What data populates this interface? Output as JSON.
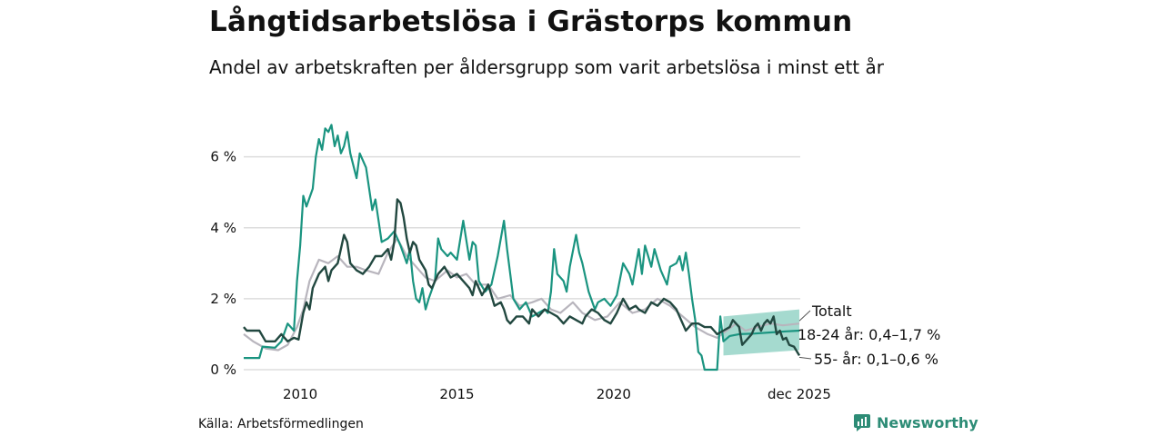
{
  "title": "Långtidsarbetslösa i Grästorps kommun",
  "subtitle": "Andel av arbetskraften per åldersgrupp som varit arbetslösa i minst ett år",
  "source": "Källa: Arbetsförmedlingen",
  "brand": "Newsworthy",
  "colors": {
    "total": "#b8b5bd",
    "youth": "#1a9480",
    "senior": "#224840",
    "band": "#8fd1c3",
    "grid": "#dddddd"
  },
  "chart_data": {
    "type": "line",
    "title": "Långtidsarbetslösa i Grästorps kommun",
    "xlim": [
      2008.2,
      2025.95
    ],
    "ylim": [
      0,
      7.4
    ],
    "y_ticks": [
      0,
      2,
      4,
      6
    ],
    "y_tick_labels": [
      "0 %",
      "2 %",
      "4 %",
      "6 %"
    ],
    "x_ticks": [
      2010,
      2015,
      2020,
      2025.92
    ],
    "x_tick_labels": [
      "2010",
      "2015",
      "2020",
      "dec 2025"
    ],
    "series": [
      {
        "name": "Totalt",
        "label": "Totalt",
        "key": "total",
        "points": [
          [
            2008.2,
            1.0
          ],
          [
            2008.5,
            0.8
          ],
          [
            2008.9,
            0.6
          ],
          [
            2009.3,
            0.55
          ],
          [
            2009.6,
            0.7
          ],
          [
            2009.9,
            1.2
          ],
          [
            2010.1,
            1.7
          ],
          [
            2010.3,
            2.5
          ],
          [
            2010.6,
            3.1
          ],
          [
            2010.9,
            3.0
          ],
          [
            2011.2,
            3.2
          ],
          [
            2011.5,
            2.9
          ],
          [
            2011.8,
            2.9
          ],
          [
            2012.1,
            2.8
          ],
          [
            2012.5,
            2.7
          ],
          [
            2012.8,
            3.3
          ],
          [
            2013.1,
            3.7
          ],
          [
            2013.4,
            3.2
          ],
          [
            2013.7,
            2.9
          ],
          [
            2014.0,
            2.6
          ],
          [
            2014.3,
            2.5
          ],
          [
            2014.7,
            2.8
          ],
          [
            2015.0,
            2.6
          ],
          [
            2015.3,
            2.7
          ],
          [
            2015.6,
            2.4
          ],
          [
            2016.0,
            2.4
          ],
          [
            2016.3,
            2.0
          ],
          [
            2016.7,
            2.1
          ],
          [
            2017.0,
            1.8
          ],
          [
            2017.4,
            1.9
          ],
          [
            2017.7,
            2.0
          ],
          [
            2018.0,
            1.7
          ],
          [
            2018.3,
            1.6
          ],
          [
            2018.7,
            1.9
          ],
          [
            2019.0,
            1.6
          ],
          [
            2019.4,
            1.4
          ],
          [
            2019.8,
            1.5
          ],
          [
            2020.2,
            1.9
          ],
          [
            2020.6,
            1.6
          ],
          [
            2021.0,
            1.7
          ],
          [
            2021.4,
            2.0
          ],
          [
            2021.8,
            1.8
          ],
          [
            2022.2,
            1.5
          ],
          [
            2022.6,
            1.2
          ],
          [
            2023.0,
            1.0
          ],
          [
            2023.3,
            0.9
          ],
          [
            2023.6,
            1.1
          ],
          [
            2023.9,
            1.3
          ],
          [
            2024.2,
            1.1
          ],
          [
            2024.6,
            1.2
          ],
          [
            2025.0,
            1.3
          ],
          [
            2025.4,
            1.25
          ],
          [
            2025.92,
            1.3
          ]
        ]
      },
      {
        "name": "18-24 år",
        "label": "18-24 år: 0,4–1,7 %",
        "key": "youth",
        "points": [
          [
            2008.2,
            0.33
          ],
          [
            2008.7,
            0.33
          ],
          [
            2008.8,
            0.65
          ],
          [
            2009.2,
            0.62
          ],
          [
            2009.4,
            0.8
          ],
          [
            2009.6,
            1.3
          ],
          [
            2009.8,
            1.1
          ],
          [
            2009.9,
            2.5
          ],
          [
            2010.0,
            3.5
          ],
          [
            2010.1,
            4.9
          ],
          [
            2010.2,
            4.6
          ],
          [
            2010.4,
            5.1
          ],
          [
            2010.5,
            6.0
          ],
          [
            2010.6,
            6.5
          ],
          [
            2010.7,
            6.2
          ],
          [
            2010.8,
            6.8
          ],
          [
            2010.9,
            6.7
          ],
          [
            2011.0,
            6.9
          ],
          [
            2011.1,
            6.3
          ],
          [
            2011.2,
            6.6
          ],
          [
            2011.3,
            6.1
          ],
          [
            2011.4,
            6.3
          ],
          [
            2011.5,
            6.7
          ],
          [
            2011.6,
            6.1
          ],
          [
            2011.8,
            5.4
          ],
          [
            2011.9,
            6.1
          ],
          [
            2012.1,
            5.7
          ],
          [
            2012.3,
            4.5
          ],
          [
            2012.4,
            4.8
          ],
          [
            2012.5,
            4.2
          ],
          [
            2012.6,
            3.6
          ],
          [
            2012.8,
            3.7
          ],
          [
            2013.0,
            3.9
          ],
          [
            2013.2,
            3.5
          ],
          [
            2013.4,
            3.0
          ],
          [
            2013.5,
            3.4
          ],
          [
            2013.6,
            2.5
          ],
          [
            2013.7,
            2.0
          ],
          [
            2013.8,
            1.9
          ],
          [
            2013.9,
            2.3
          ],
          [
            2014.0,
            1.7
          ],
          [
            2014.1,
            2.0
          ],
          [
            2014.3,
            2.5
          ],
          [
            2014.4,
            3.7
          ],
          [
            2014.5,
            3.4
          ],
          [
            2014.7,
            3.2
          ],
          [
            2014.8,
            3.3
          ],
          [
            2015.0,
            3.1
          ],
          [
            2015.2,
            4.2
          ],
          [
            2015.4,
            3.1
          ],
          [
            2015.5,
            3.6
          ],
          [
            2015.6,
            3.5
          ],
          [
            2015.7,
            2.5
          ],
          [
            2015.9,
            2.2
          ],
          [
            2016.1,
            2.4
          ],
          [
            2016.3,
            3.2
          ],
          [
            2016.5,
            4.2
          ],
          [
            2016.6,
            3.4
          ],
          [
            2016.7,
            2.7
          ],
          [
            2016.8,
            2.0
          ],
          [
            2017.0,
            1.7
          ],
          [
            2017.2,
            1.9
          ],
          [
            2017.4,
            1.5
          ],
          [
            2017.6,
            1.6
          ],
          [
            2017.8,
            1.7
          ],
          [
            2017.9,
            1.6
          ],
          [
            2018.0,
            2.2
          ],
          [
            2018.1,
            3.4
          ],
          [
            2018.2,
            2.7
          ],
          [
            2018.4,
            2.5
          ],
          [
            2018.5,
            2.2
          ],
          [
            2018.6,
            2.9
          ],
          [
            2018.8,
            3.8
          ],
          [
            2018.9,
            3.3
          ],
          [
            2019.0,
            3.0
          ],
          [
            2019.2,
            2.2
          ],
          [
            2019.4,
            1.7
          ],
          [
            2019.5,
            1.9
          ],
          [
            2019.7,
            2.0
          ],
          [
            2019.9,
            1.8
          ],
          [
            2020.1,
            2.1
          ],
          [
            2020.3,
            3.0
          ],
          [
            2020.5,
            2.7
          ],
          [
            2020.6,
            2.4
          ],
          [
            2020.8,
            3.4
          ],
          [
            2020.9,
            2.7
          ],
          [
            2021.0,
            3.5
          ],
          [
            2021.1,
            3.2
          ],
          [
            2021.2,
            2.9
          ],
          [
            2021.3,
            3.4
          ],
          [
            2021.5,
            2.8
          ],
          [
            2021.7,
            2.4
          ],
          [
            2021.8,
            2.9
          ],
          [
            2022.0,
            3.0
          ],
          [
            2022.1,
            3.2
          ],
          [
            2022.2,
            2.8
          ],
          [
            2022.3,
            3.3
          ],
          [
            2022.4,
            2.7
          ],
          [
            2022.5,
            2.0
          ],
          [
            2022.6,
            1.4
          ],
          [
            2022.7,
            0.5
          ],
          [
            2022.8,
            0.4
          ],
          [
            2022.9,
            0.0
          ],
          [
            2023.3,
            0.0
          ],
          [
            2023.4,
            1.5
          ],
          [
            2023.5,
            0.8
          ],
          [
            2023.7,
            0.95
          ],
          [
            2024.0,
            1.0
          ],
          [
            2024.5,
            1.02
          ],
          [
            2025.0,
            1.05
          ],
          [
            2025.5,
            1.08
          ],
          [
            2025.92,
            1.1
          ]
        ]
      },
      {
        "name": "55- år",
        "label": "55- år: 0,1–0,6 %",
        "key": "senior",
        "points": [
          [
            2008.2,
            1.2
          ],
          [
            2008.3,
            1.1
          ],
          [
            2008.7,
            1.1
          ],
          [
            2008.9,
            0.8
          ],
          [
            2009.2,
            0.8
          ],
          [
            2009.4,
            1.0
          ],
          [
            2009.6,
            0.8
          ],
          [
            2009.8,
            0.9
          ],
          [
            2009.95,
            0.85
          ],
          [
            2010.1,
            1.6
          ],
          [
            2010.2,
            1.9
          ],
          [
            2010.3,
            1.7
          ],
          [
            2010.4,
            2.3
          ],
          [
            2010.6,
            2.7
          ],
          [
            2010.8,
            2.9
          ],
          [
            2010.9,
            2.5
          ],
          [
            2011.0,
            2.8
          ],
          [
            2011.2,
            3.0
          ],
          [
            2011.4,
            3.8
          ],
          [
            2011.5,
            3.6
          ],
          [
            2011.6,
            3.0
          ],
          [
            2011.8,
            2.8
          ],
          [
            2012.0,
            2.7
          ],
          [
            2012.2,
            2.9
          ],
          [
            2012.4,
            3.2
          ],
          [
            2012.6,
            3.2
          ],
          [
            2012.8,
            3.4
          ],
          [
            2012.9,
            3.1
          ],
          [
            2013.0,
            3.6
          ],
          [
            2013.1,
            4.8
          ],
          [
            2013.2,
            4.7
          ],
          [
            2013.3,
            4.3
          ],
          [
            2013.4,
            3.7
          ],
          [
            2013.5,
            3.3
          ],
          [
            2013.6,
            3.6
          ],
          [
            2013.7,
            3.5
          ],
          [
            2013.8,
            3.1
          ],
          [
            2014.0,
            2.8
          ],
          [
            2014.1,
            2.4
          ],
          [
            2014.2,
            2.3
          ],
          [
            2014.4,
            2.7
          ],
          [
            2014.6,
            2.9
          ],
          [
            2014.8,
            2.6
          ],
          [
            2015.0,
            2.7
          ],
          [
            2015.2,
            2.5
          ],
          [
            2015.4,
            2.3
          ],
          [
            2015.5,
            2.1
          ],
          [
            2015.6,
            2.5
          ],
          [
            2015.8,
            2.1
          ],
          [
            2016.0,
            2.4
          ],
          [
            2016.2,
            1.8
          ],
          [
            2016.4,
            1.9
          ],
          [
            2016.5,
            1.7
          ],
          [
            2016.6,
            1.4
          ],
          [
            2016.7,
            1.3
          ],
          [
            2016.9,
            1.5
          ],
          [
            2017.1,
            1.5
          ],
          [
            2017.3,
            1.3
          ],
          [
            2017.4,
            1.7
          ],
          [
            2017.6,
            1.5
          ],
          [
            2017.8,
            1.7
          ],
          [
            2018.0,
            1.6
          ],
          [
            2018.2,
            1.5
          ],
          [
            2018.4,
            1.3
          ],
          [
            2018.6,
            1.5
          ],
          [
            2018.8,
            1.4
          ],
          [
            2019.0,
            1.3
          ],
          [
            2019.1,
            1.5
          ],
          [
            2019.3,
            1.7
          ],
          [
            2019.5,
            1.6
          ],
          [
            2019.7,
            1.4
          ],
          [
            2019.9,
            1.3
          ],
          [
            2020.1,
            1.6
          ],
          [
            2020.3,
            2.0
          ],
          [
            2020.5,
            1.7
          ],
          [
            2020.7,
            1.8
          ],
          [
            2020.8,
            1.7
          ],
          [
            2021.0,
            1.6
          ],
          [
            2021.2,
            1.9
          ],
          [
            2021.4,
            1.8
          ],
          [
            2021.6,
            2.0
          ],
          [
            2021.8,
            1.9
          ],
          [
            2022.0,
            1.7
          ],
          [
            2022.2,
            1.3
          ],
          [
            2022.3,
            1.1
          ],
          [
            2022.5,
            1.3
          ],
          [
            2022.7,
            1.3
          ],
          [
            2022.9,
            1.2
          ],
          [
            2023.1,
            1.2
          ],
          [
            2023.2,
            1.1
          ],
          [
            2023.3,
            1.0
          ],
          [
            2023.5,
            1.1
          ],
          [
            2023.7,
            1.2
          ],
          [
            2023.8,
            1.4
          ],
          [
            2024.0,
            1.2
          ],
          [
            2024.1,
            0.7
          ],
          [
            2024.2,
            0.8
          ],
          [
            2024.4,
            1.0
          ],
          [
            2024.5,
            1.2
          ],
          [
            2024.6,
            1.3
          ],
          [
            2024.7,
            1.1
          ],
          [
            2024.8,
            1.3
          ],
          [
            2024.9,
            1.4
          ],
          [
            2025.0,
            1.3
          ],
          [
            2025.1,
            1.5
          ],
          [
            2025.2,
            1.0
          ],
          [
            2025.3,
            1.1
          ],
          [
            2025.4,
            0.85
          ],
          [
            2025.5,
            0.9
          ],
          [
            2025.6,
            0.7
          ],
          [
            2025.75,
            0.65
          ],
          [
            2025.92,
            0.4
          ]
        ]
      }
    ],
    "band": {
      "name": "18-24 år",
      "x0": 2023.5,
      "x1": 2025.92,
      "low_start": 0.4,
      "high_start": 1.5,
      "low_end": 0.55,
      "high_end": 1.7
    },
    "annotations": [
      "Totalt",
      "18-24 år: 0,4–1,7 %",
      "55- år: 0,1–0,6 %"
    ]
  }
}
